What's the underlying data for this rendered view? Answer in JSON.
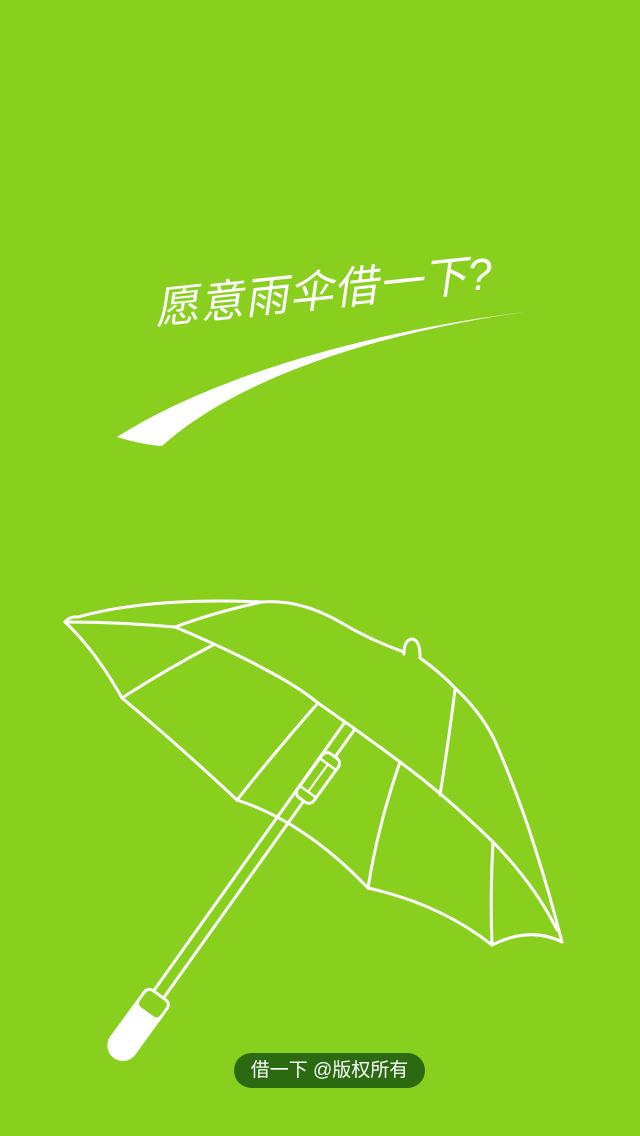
{
  "app": {
    "background_color": "#89CF1E"
  },
  "slogan": {
    "text": "愿意雨伞借一下?"
  },
  "icons": {
    "illustration": "umbrella-icon",
    "decoration": "swoosh-icon"
  },
  "footer": {
    "copyright": "借一下 @版权所有",
    "background_color": "#2B6A11",
    "text_color": "#FFFFFF"
  }
}
